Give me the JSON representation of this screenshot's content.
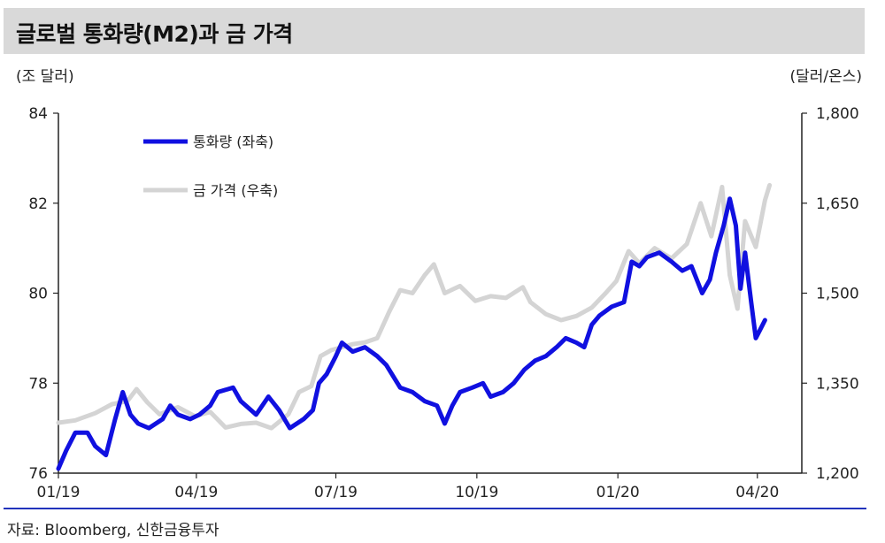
{
  "title": "글로벌 통화량(M2)과 금 가격",
  "unit_left": "(조 달러)",
  "unit_right": "(달러/온스)",
  "source": "자료: Bloomberg, 신한금융투자",
  "colors": {
    "m2": "#1010e0",
    "gold": "#d4d4d4",
    "title_bg": "#d9d9d9",
    "rule": "#2233bb"
  },
  "chart_data": {
    "type": "line",
    "x_ticks": [
      "01/19",
      "04/19",
      "07/19",
      "10/19",
      "01/20",
      "04/20"
    ],
    "x_range": [
      "2019-01-01",
      "2020-04-30"
    ],
    "y_left": {
      "ticks": [
        "76",
        "78",
        "80",
        "82",
        "84"
      ],
      "range": [
        76,
        84
      ]
    },
    "y_right": {
      "ticks": [
        "1,200",
        "1,350",
        "1,500",
        "1,650",
        "1,800"
      ],
      "range": [
        1200,
        1800
      ]
    },
    "grid": false,
    "legend_position": "top-left",
    "series": [
      {
        "name": "통화량 (좌축)",
        "axis": "left",
        "color": "#1010e0",
        "points": [
          [
            "2019-01-01",
            76.1
          ],
          [
            "2019-01-06",
            76.5
          ],
          [
            "2019-01-12",
            76.9
          ],
          [
            "2019-01-20",
            76.9
          ],
          [
            "2019-01-25",
            76.6
          ],
          [
            "2019-02-01",
            76.4
          ],
          [
            "2019-02-07",
            77.2
          ],
          [
            "2019-02-12",
            77.8
          ],
          [
            "2019-02-17",
            77.3
          ],
          [
            "2019-02-22",
            77.1
          ],
          [
            "2019-03-01",
            77.0
          ],
          [
            "2019-03-10",
            77.2
          ],
          [
            "2019-03-15",
            77.5
          ],
          [
            "2019-03-20",
            77.3
          ],
          [
            "2019-03-28",
            77.2
          ],
          [
            "2019-04-03",
            77.3
          ],
          [
            "2019-04-10",
            77.5
          ],
          [
            "2019-04-15",
            77.8
          ],
          [
            "2019-04-25",
            77.9
          ],
          [
            "2019-04-30",
            77.6
          ],
          [
            "2019-05-10",
            77.3
          ],
          [
            "2019-05-18",
            77.7
          ],
          [
            "2019-05-25",
            77.4
          ],
          [
            "2019-06-01",
            77.0
          ],
          [
            "2019-06-10",
            77.2
          ],
          [
            "2019-06-16",
            77.4
          ],
          [
            "2019-06-20",
            78.0
          ],
          [
            "2019-06-25",
            78.2
          ],
          [
            "2019-07-01",
            78.6
          ],
          [
            "2019-07-05",
            78.9
          ],
          [
            "2019-07-12",
            78.7
          ],
          [
            "2019-07-20",
            78.8
          ],
          [
            "2019-07-28",
            78.6
          ],
          [
            "2019-08-03",
            78.4
          ],
          [
            "2019-08-12",
            77.9
          ],
          [
            "2019-08-20",
            77.8
          ],
          [
            "2019-08-28",
            77.6
          ],
          [
            "2019-09-05",
            77.5
          ],
          [
            "2019-09-10",
            77.1
          ],
          [
            "2019-09-15",
            77.5
          ],
          [
            "2019-09-20",
            77.8
          ],
          [
            "2019-09-28",
            77.9
          ],
          [
            "2019-10-05",
            78.0
          ],
          [
            "2019-10-10",
            77.7
          ],
          [
            "2019-10-18",
            77.8
          ],
          [
            "2019-10-25",
            78.0
          ],
          [
            "2019-11-01",
            78.3
          ],
          [
            "2019-11-08",
            78.5
          ],
          [
            "2019-11-15",
            78.6
          ],
          [
            "2019-11-22",
            78.8
          ],
          [
            "2019-11-28",
            79.0
          ],
          [
            "2019-12-05",
            78.9
          ],
          [
            "2019-12-10",
            78.8
          ],
          [
            "2019-12-15",
            79.3
          ],
          [
            "2019-12-20",
            79.5
          ],
          [
            "2019-12-28",
            79.7
          ],
          [
            "2020-01-05",
            79.8
          ],
          [
            "2020-01-10",
            80.7
          ],
          [
            "2020-01-15",
            80.6
          ],
          [
            "2020-01-20",
            80.8
          ],
          [
            "2020-01-28",
            80.9
          ],
          [
            "2020-02-05",
            80.7
          ],
          [
            "2020-02-12",
            80.5
          ],
          [
            "2020-02-18",
            80.6
          ],
          [
            "2020-02-25",
            80.0
          ],
          [
            "2020-03-01",
            80.3
          ],
          [
            "2020-03-05",
            80.9
          ],
          [
            "2020-03-10",
            81.5
          ],
          [
            "2020-03-14",
            82.1
          ],
          [
            "2020-03-18",
            81.5
          ],
          [
            "2020-03-21",
            80.1
          ],
          [
            "2020-03-24",
            80.9
          ],
          [
            "2020-03-28",
            79.8
          ],
          [
            "2020-03-31",
            79.0
          ],
          [
            "2020-04-03",
            79.2
          ],
          [
            "2020-04-06",
            79.4
          ]
        ]
      },
      {
        "name": "금 가격 (우축)",
        "axis": "right",
        "color": "#d4d4d4",
        "points": [
          [
            "2019-01-01",
            1284
          ],
          [
            "2019-01-12",
            1288
          ],
          [
            "2019-01-25",
            1300
          ],
          [
            "2019-02-05",
            1315
          ],
          [
            "2019-02-15",
            1320
          ],
          [
            "2019-02-21",
            1340
          ],
          [
            "2019-02-28",
            1318
          ],
          [
            "2019-03-08",
            1298
          ],
          [
            "2019-03-20",
            1310
          ],
          [
            "2019-03-31",
            1295
          ],
          [
            "2019-04-10",
            1302
          ],
          [
            "2019-04-20",
            1276
          ],
          [
            "2019-04-30",
            1282
          ],
          [
            "2019-05-10",
            1284
          ],
          [
            "2019-05-20",
            1275
          ],
          [
            "2019-05-31",
            1298
          ],
          [
            "2019-06-07",
            1335
          ],
          [
            "2019-06-15",
            1345
          ],
          [
            "2019-06-21",
            1395
          ],
          [
            "2019-06-28",
            1405
          ],
          [
            "2019-07-05",
            1410
          ],
          [
            "2019-07-12",
            1415
          ],
          [
            "2019-07-20",
            1418
          ],
          [
            "2019-07-28",
            1425
          ],
          [
            "2019-08-05",
            1470
          ],
          [
            "2019-08-12",
            1505
          ],
          [
            "2019-08-20",
            1500
          ],
          [
            "2019-08-28",
            1530
          ],
          [
            "2019-09-03",
            1548
          ],
          [
            "2019-09-10",
            1500
          ],
          [
            "2019-09-20",
            1512
          ],
          [
            "2019-09-30",
            1487
          ],
          [
            "2019-10-10",
            1495
          ],
          [
            "2019-10-20",
            1492
          ],
          [
            "2019-10-31",
            1510
          ],
          [
            "2019-11-05",
            1485
          ],
          [
            "2019-11-15",
            1465
          ],
          [
            "2019-11-25",
            1455
          ],
          [
            "2019-12-05",
            1462
          ],
          [
            "2019-12-15",
            1476
          ],
          [
            "2019-12-24",
            1500
          ],
          [
            "2019-12-31",
            1520
          ],
          [
            "2020-01-08",
            1570
          ],
          [
            "2020-01-15",
            1550
          ],
          [
            "2020-01-25",
            1575
          ],
          [
            "2020-02-05",
            1558
          ],
          [
            "2020-02-15",
            1582
          ],
          [
            "2020-02-24",
            1650
          ],
          [
            "2020-03-02",
            1595
          ],
          [
            "2020-03-09",
            1677
          ],
          [
            "2020-03-14",
            1530
          ],
          [
            "2020-03-19",
            1474
          ],
          [
            "2020-03-24",
            1620
          ],
          [
            "2020-03-31",
            1577
          ],
          [
            "2020-04-06",
            1655
          ],
          [
            "2020-04-09",
            1680
          ]
        ]
      }
    ]
  }
}
